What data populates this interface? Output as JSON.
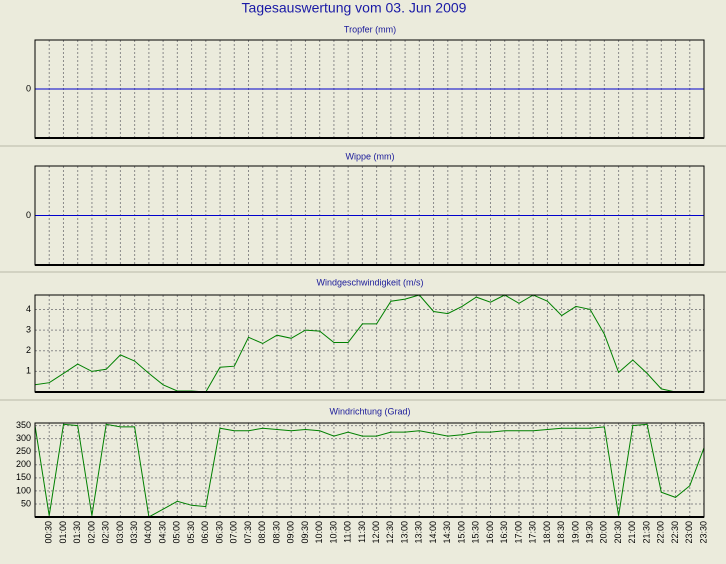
{
  "title": "Tagesauswertung vom 03. Jun 2009",
  "chart_data": [
    {
      "type": "line",
      "title": "Tropfer (mm)",
      "ylim": [
        -1,
        1
      ],
      "yticks": [
        0
      ],
      "grid": true,
      "color": "#0000cc",
      "values": [
        0,
        0,
        0,
        0,
        0,
        0,
        0,
        0,
        0,
        0,
        0,
        0,
        0,
        0,
        0,
        0,
        0,
        0,
        0,
        0,
        0,
        0,
        0,
        0,
        0,
        0,
        0,
        0,
        0,
        0,
        0,
        0,
        0,
        0,
        0,
        0,
        0,
        0,
        0,
        0,
        0,
        0,
        0,
        0,
        0,
        0,
        0,
        0
      ]
    },
    {
      "type": "line",
      "title": "Wippe (mm)",
      "ylim": [
        -1,
        1
      ],
      "yticks": [
        0
      ],
      "grid": true,
      "color": "#0000cc",
      "values": [
        0,
        0,
        0,
        0,
        0,
        0,
        0,
        0,
        0,
        0,
        0,
        0,
        0,
        0,
        0,
        0,
        0,
        0,
        0,
        0,
        0,
        0,
        0,
        0,
        0,
        0,
        0,
        0,
        0,
        0,
        0,
        0,
        0,
        0,
        0,
        0,
        0,
        0,
        0,
        0,
        0,
        0,
        0,
        0,
        0,
        0,
        0,
        0
      ]
    },
    {
      "type": "line",
      "title": "Windgeschwindigkeit (m/s)",
      "ylim": [
        0,
        4.7
      ],
      "yticks": [
        1,
        2,
        3,
        4
      ],
      "grid": true,
      "color": "#008000",
      "values": [
        0.35,
        0.45,
        0.9,
        1.35,
        1.0,
        1.1,
        1.8,
        1.5,
        0.9,
        0.35,
        0.05,
        0.05,
        0.0,
        1.2,
        1.25,
        2.65,
        2.35,
        2.75,
        2.6,
        3.0,
        2.95,
        2.4,
        2.4,
        3.3,
        3.3,
        4.4,
        4.5,
        4.7,
        3.9,
        3.8,
        4.15,
        4.6,
        4.35,
        4.7,
        4.3,
        4.7,
        4.4,
        3.7,
        4.15,
        4.0,
        2.8,
        0.95,
        1.55,
        0.9,
        0.15,
        0.0,
        null,
        null
      ]
    },
    {
      "type": "line",
      "title": "Windrichtung (Grad)",
      "ylim": [
        0,
        360
      ],
      "yticks": [
        50,
        100,
        150,
        200,
        250,
        300,
        350
      ],
      "grid": true,
      "color": "#008000",
      "categories": [
        null,
        "00:30",
        "01:00",
        "01:30",
        "02:00",
        "02:30",
        "03:00",
        "03:30",
        "04:00",
        "04:30",
        "05:00",
        "05:30",
        "06:00",
        "06:30",
        "07:00",
        "07:30",
        "08:00",
        "08:30",
        "09:00",
        "09:30",
        "10:00",
        "10:30",
        "11:00",
        "11:30",
        "12:00",
        "12:30",
        "13:00",
        "13:30",
        "14:00",
        "14:30",
        "15:00",
        "15:30",
        "16:00",
        "16:30",
        "17:00",
        "17:30",
        "18:00",
        "18:30",
        "19:00",
        "19:30",
        "20:00",
        "20:30",
        "21:00",
        "21:30",
        "22:00",
        "22:30",
        "23:00",
        "23:30"
      ],
      "values": [
        350,
        5,
        355,
        350,
        5,
        355,
        345,
        345,
        0,
        30,
        60,
        45,
        40,
        340,
        330,
        330,
        340,
        335,
        330,
        335,
        330,
        310,
        325,
        310,
        310,
        325,
        325,
        330,
        320,
        310,
        315,
        325,
        325,
        330,
        330,
        330,
        335,
        340,
        340,
        340,
        345,
        5,
        350,
        355,
        95,
        75,
        120,
        265
      ]
    }
  ]
}
